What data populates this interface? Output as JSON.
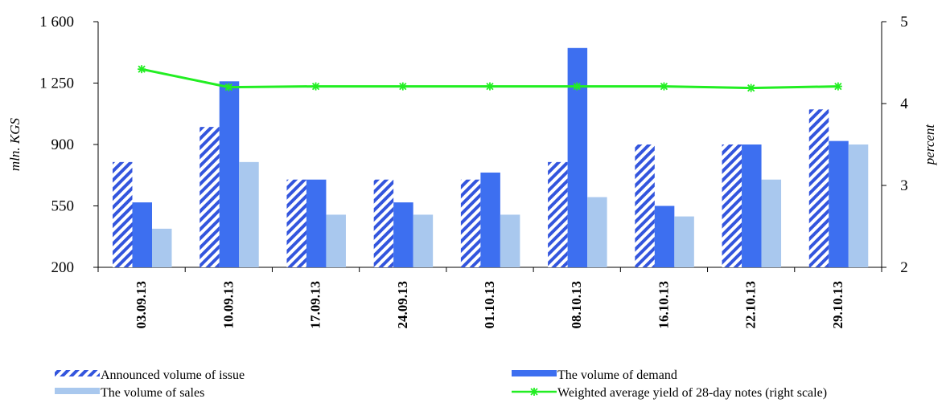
{
  "chart_data": {
    "type": "bar",
    "categories": [
      "03.09.13",
      "10.09.13",
      "17.09.13",
      "24.09.13",
      "01.10.13",
      "08.10.13",
      "16.10.13",
      "22.10.13",
      "29.10.13"
    ],
    "series": [
      {
        "name": "Announced volume of issue",
        "kind": "bar",
        "axis": "left",
        "color": "#3355dd",
        "pattern": "diagonal-stripes",
        "values": [
          800,
          1000,
          700,
          700,
          700,
          800,
          900,
          900,
          1100
        ]
      },
      {
        "name": "The volume of demand",
        "kind": "bar",
        "axis": "left",
        "color": "#3d6ff0",
        "values": [
          570,
          1260,
          700,
          570,
          740,
          1450,
          550,
          900,
          920
        ]
      },
      {
        "name": "The volume of sales",
        "kind": "bar",
        "axis": "left",
        "color": "#a9c8ee",
        "values": [
          420,
          800,
          500,
          500,
          500,
          600,
          490,
          700,
          900
        ]
      },
      {
        "name": "Weighted average yield of 28-day notes (right scale)",
        "kind": "line",
        "axis": "right",
        "color": "#22ee22",
        "marker": "asterisk",
        "values": [
          4.42,
          4.2,
          4.21,
          4.21,
          4.21,
          4.21,
          4.21,
          4.19,
          4.21
        ]
      }
    ],
    "ylabel": "mln. KGS",
    "y2label": "percent",
    "ylim": [
      200,
      1600
    ],
    "y2lim": [
      2,
      5
    ],
    "yticks": [
      "1 600",
      "1 250",
      "900",
      "550",
      "200"
    ],
    "yticks_values": [
      1600,
      1250,
      900,
      550,
      200
    ],
    "y2ticks": [
      "5",
      "4",
      "3",
      "2"
    ],
    "y2ticks_values": [
      5,
      4,
      3,
      2
    ],
    "grid": false,
    "legend_position": "bottom"
  }
}
